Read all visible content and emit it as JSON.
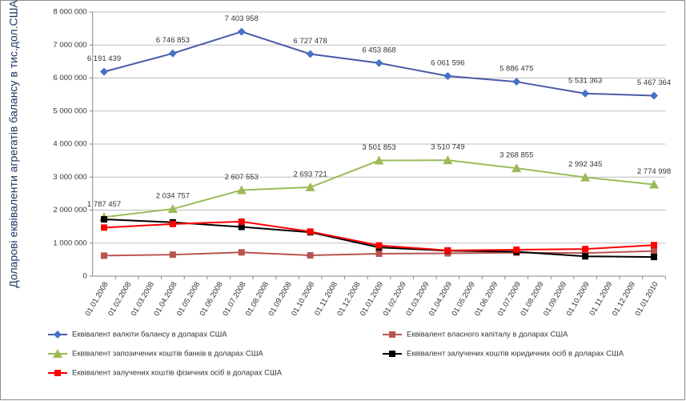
{
  "chart_data": {
    "type": "line",
    "y_label": "Доларові еквіваленти агрегатів балансу в тис.дол.США",
    "x": [
      "01.01.2008",
      "01.04.2008",
      "01.07.2008",
      "01.10.2008",
      "01.01.2009",
      "01.04.2009",
      "01.07.2009",
      "01.10.2009",
      "01.01.2010"
    ],
    "xlim": [
      "01.01.2008",
      "01.01.2010"
    ],
    "xticks": [
      "01.01.2008",
      "01.02.2008",
      "01.03.2008",
      "01.04.2008",
      "01.05.2008",
      "01.06.2008",
      "01.07.2008",
      "01.08.2008",
      "01.09.2008",
      "01.10.2008",
      "01.11.2008",
      "01.12.2008",
      "01.01.2009",
      "01.02.2009",
      "01.03.2009",
      "01.04.2009",
      "01.05.2009",
      "01.06.2009",
      "01.07.2009",
      "01.08.2009",
      "01.09.2009",
      "01.10.2009",
      "01.11.2009",
      "01.12.2009",
      "01.01.2010"
    ],
    "ylim": [
      0,
      8000000
    ],
    "yticks": [
      0,
      {
        "value": 1000000,
        "label": "1 000 000"
      },
      {
        "value": 2000000,
        "label": "2 000 000"
      },
      {
        "value": 3000000,
        "label": "3 000 000"
      },
      {
        "value": 4000000,
        "label": "4 000 000"
      },
      {
        "value": 5000000,
        "label": "5 000 000"
      },
      {
        "value": 6000000,
        "label": "6 000 000"
      },
      {
        "value": 7000000,
        "label": "7 000 000"
      },
      {
        "value": 8000000,
        "label": "8 000 000"
      }
    ],
    "grid": true,
    "series": [
      {
        "name": "Еквівалент валюти балансу в доларах США",
        "color": "#4a5aa8",
        "marker": "diamond",
        "values": [
          6191439,
          6746853,
          7403958,
          6727478,
          6453868,
          6061596,
          5886475,
          5531363,
          5467364
        ],
        "value_labels": [
          "6 191 439",
          "6 746 853",
          "7 403 958",
          "6 727 478",
          "6 453 868",
          "6 061 596",
          "5 886 475",
          "5 531 363",
          "5 467 364"
        ]
      },
      {
        "name": "Еквівалент власного капіталу в доларах США",
        "color": "#b85450",
        "marker": "square",
        "values": [
          620000,
          650000,
          720000,
          630000,
          680000,
          690000,
          710000,
          700000,
          760000
        ]
      },
      {
        "name": "Еквівалент запозичених коштів банків в доларах США",
        "color": "#9bbb59",
        "marker": "triangle",
        "values": [
          1787457,
          2034757,
          2607553,
          2693721,
          3501853,
          3510749,
          3268855,
          2992345,
          2774998
        ],
        "value_labels": [
          "1 787 457",
          "2 034 757",
          "2 607 553",
          "2 693 721",
          "3 501 853",
          "3 510 749",
          "3 268 855",
          "2 992 345",
          "2 774 998"
        ]
      },
      {
        "name": "Еквівалент залучених коштів юридичних осіб в доларах США",
        "color": "#000000",
        "marker": "square",
        "values": [
          1720000,
          1630000,
          1490000,
          1330000,
          870000,
          770000,
          740000,
          600000,
          580000
        ]
      },
      {
        "name": "Еквівалент залучених коштів фізичних осіб в доларах США",
        "color": "#ff0000",
        "marker": "square",
        "values": [
          1470000,
          1580000,
          1650000,
          1350000,
          930000,
          780000,
          800000,
          820000,
          940000
        ]
      }
    ]
  }
}
